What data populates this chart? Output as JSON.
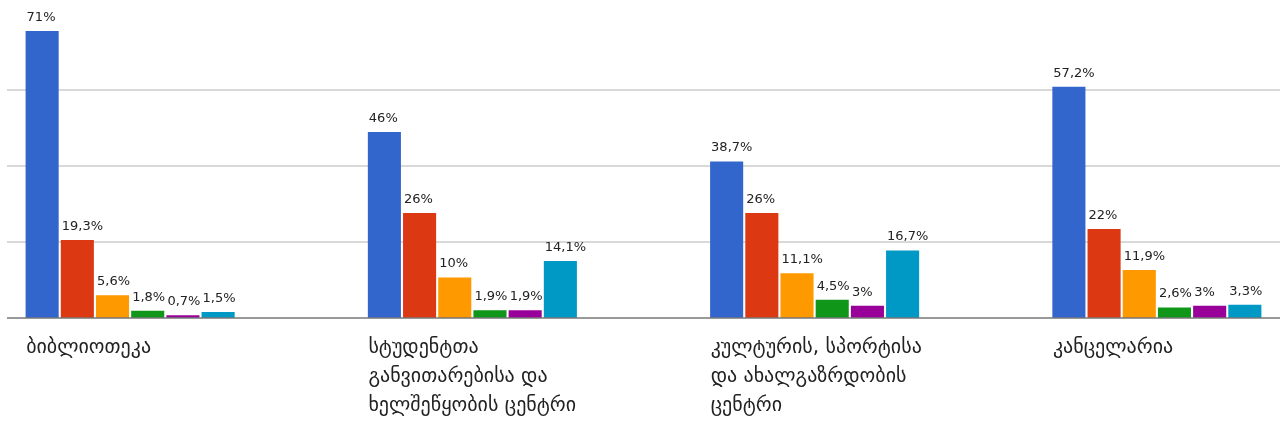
{
  "chart_data": {
    "type": "bar",
    "categories": [
      "ბიბლიოთეკა",
      "სტუდენტთა განვითარებისა და ხელშეწყობის ცენტრი",
      "კულტურის, სპორტისა და ახალგაზრდობის ცენტრი",
      "კანცელარია"
    ],
    "series": [
      {
        "color": "#3366cc",
        "values": [
          71,
          46,
          38.7,
          57.2
        ],
        "value_labels": [
          "71%",
          "46%",
          "38,7%",
          "57,2%"
        ]
      },
      {
        "color": "#dc3912",
        "values": [
          19.3,
          26,
          26,
          22
        ],
        "value_labels": [
          "19,3%",
          "26%",
          "26%",
          "22%"
        ]
      },
      {
        "color": "#ff9900",
        "values": [
          5.6,
          10,
          11.1,
          11.9
        ],
        "value_labels": [
          "5,6%",
          "10%",
          "11,1%",
          "11,9%"
        ]
      },
      {
        "color": "#109618",
        "values": [
          1.8,
          1.9,
          4.5,
          2.6
        ],
        "value_labels": [
          "1,8%",
          "1,9%",
          "4,5%",
          "2,6%"
        ]
      },
      {
        "color": "#990099",
        "values": [
          0.7,
          1.9,
          3,
          3
        ],
        "value_labels": [
          "0,7%",
          "1,9%",
          "3%",
          "3%"
        ]
      },
      {
        "color": "#0099c6",
        "values": [
          1.5,
          14.1,
          16.7,
          3.3
        ],
        "value_labels": [
          "1,5%",
          "14,1%",
          "16,7%",
          "3,3%"
        ]
      }
    ],
    "yticks": [
      {
        "value": 18.8,
        "label": null
      },
      {
        "value": 37.6,
        "label": null
      },
      {
        "value": 56.4,
        "label": null
      }
    ],
    "grid": "y",
    "tick_labels": "x"
  }
}
